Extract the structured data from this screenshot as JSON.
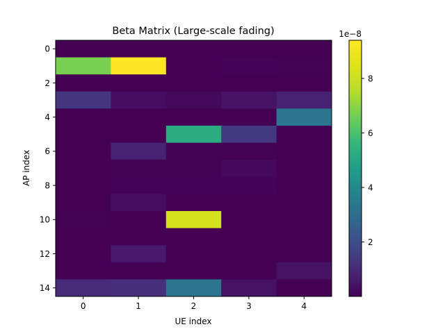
{
  "chart_data": {
    "type": "heatmap",
    "title": "Beta Matrix (Large-scale fading)",
    "xlabel": "UE index",
    "ylabel": "AP index",
    "x_categories": [
      0,
      1,
      2,
      3,
      4
    ],
    "y_categories": [
      0,
      1,
      2,
      3,
      4,
      5,
      6,
      7,
      8,
      9,
      10,
      11,
      12,
      13,
      14
    ],
    "x_ticks": [
      "0",
      "1",
      "2",
      "3",
      "4"
    ],
    "y_ticks": [
      "0",
      "2",
      "4",
      "6",
      "8",
      "10",
      "12",
      "14"
    ],
    "colormap": "viridis",
    "color_range": [
      0,
      9.4e-08
    ],
    "colorbar_ticks": [
      "2",
      "4",
      "6",
      "8"
    ],
    "colorbar_ticks_values": [
      2e-08,
      4e-08,
      6e-08,
      8e-08
    ],
    "colorbar_offset": "1e−8",
    "values": [
      [
        1e-10,
        1e-10,
        1e-10,
        1e-10,
        1e-10
      ],
      [
        6.7e-08,
        9.4e-08,
        1e-10,
        5e-10,
        2e-10
      ],
      [
        1e-10,
        1e-10,
        1e-10,
        1e-10,
        1e-10
      ],
      [
        1.3e-08,
        3e-09,
        2e-09,
        4e-09,
        8e-09
      ],
      [
        1e-10,
        1e-10,
        1e-10,
        1e-10,
        3.3e-08
      ],
      [
        1e-10,
        1e-10,
        5.2e-08,
        1.4e-08,
        1e-10
      ],
      [
        1e-10,
        8e-09,
        2e-10,
        2e-10,
        1e-10
      ],
      [
        1e-10,
        2e-10,
        2e-10,
        2e-09,
        1e-10
      ],
      [
        1e-10,
        1e-09,
        1e-09,
        1e-09,
        1e-10
      ],
      [
        1e-10,
        3e-09,
        1e-10,
        1e-10,
        1e-10
      ],
      [
        2e-10,
        1e-10,
        8.2e-08,
        1e-10,
        1e-10
      ],
      [
        1e-10,
        1e-10,
        1e-10,
        1e-10,
        1e-10
      ],
      [
        1e-10,
        6e-09,
        1e-10,
        1e-10,
        1e-10
      ],
      [
        1e-10,
        1e-10,
        1e-10,
        1e-10,
        4e-09
      ],
      [
        1e-08,
        1.1e-08,
        3.3e-08,
        4e-09,
        1e-10
      ]
    ]
  }
}
